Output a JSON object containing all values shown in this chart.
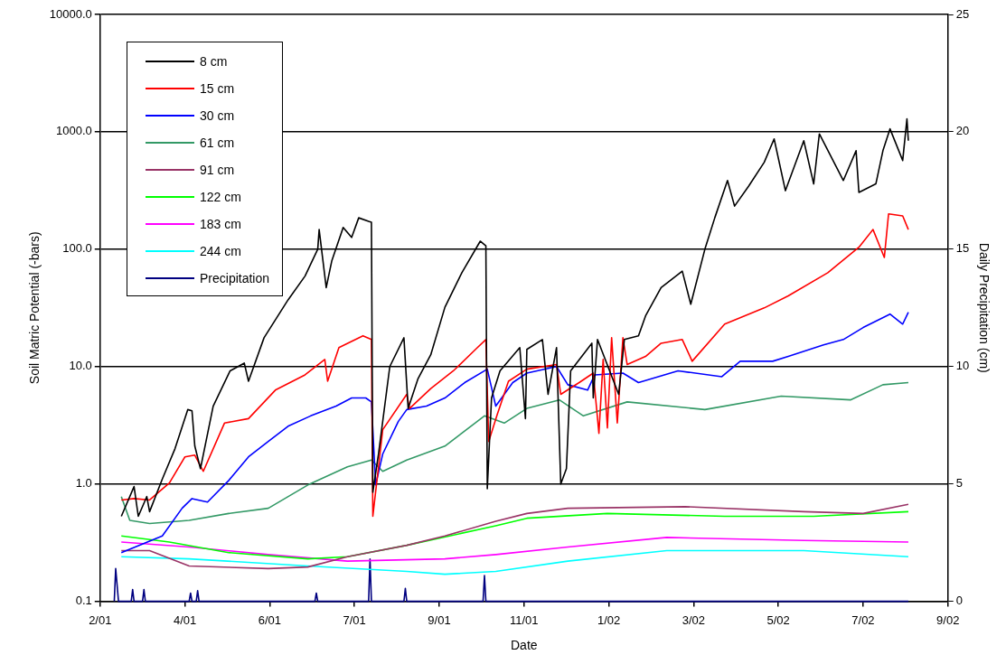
{
  "chart_data": {
    "type": "line",
    "xlabel": "Date",
    "ylabel": "Soil Matric Potential (-bars)",
    "y2label": "Daily Precipitation (cm)",
    "log": "y",
    "grid": "y",
    "legend": "top left",
    "marker": "none",
    "line_style": "solid",
    "xlim": [
      "2001-02-01",
      "2002-09-24"
    ],
    "xticks": [
      {
        "value": "2001-02-01",
        "label": "2/01"
      },
      {
        "value": "2001-04-02",
        "label": "4/01"
      },
      {
        "value": "2001-06-01",
        "label": "6/01"
      },
      {
        "value": "2001-07-31",
        "label": "7/01"
      },
      {
        "value": "2001-09-29",
        "label": "9/01"
      },
      {
        "value": "2001-11-28",
        "label": "11/01"
      },
      {
        "value": "2002-01-27",
        "label": "1/02"
      },
      {
        "value": "2002-03-28",
        "label": "3/02"
      },
      {
        "value": "2002-05-27",
        "label": "5/02"
      },
      {
        "value": "2002-07-26",
        "label": "7/02"
      },
      {
        "value": "2002-09-24",
        "label": "9/02"
      }
    ],
    "ylim": [
      0.1,
      10000
    ],
    "yticks": [
      {
        "value": 0.1,
        "label": "0.1"
      },
      {
        "value": 1,
        "label": "1.0"
      },
      {
        "value": 10,
        "label": "10.0"
      },
      {
        "value": 100,
        "label": "100.0"
      },
      {
        "value": 1000,
        "label": "1000.0"
      },
      {
        "value": 10000,
        "label": "10000.0"
      }
    ],
    "y2lim": [
      0,
      25
    ],
    "y2ticks": [
      0,
      5,
      10,
      15,
      20,
      25
    ],
    "series": [
      {
        "name": "8 cm",
        "color": "#000000",
        "x": [
          "2001-02-16",
          "2001-02-25",
          "2001-02-28",
          "2001-03-06",
          "2001-03-08",
          "2001-03-17",
          "2001-03-26",
          "2001-04-04",
          "2001-04-07",
          "2001-04-09",
          "2001-04-13",
          "2001-04-22",
          "2001-05-04",
          "2001-05-14",
          "2001-05-17",
          "2001-05-28",
          "2001-06-14",
          "2001-06-26",
          "2001-07-05",
          "2001-07-06",
          "2001-07-11",
          "2001-07-15",
          "2001-07-23",
          "2001-07-29",
          "2001-08-03",
          "2001-08-10",
          "2001-08-12",
          "2001-08-13",
          "2001-08-17",
          "2001-08-25",
          "2001-09-04",
          "2001-09-07",
          "2001-09-14",
          "2001-09-23",
          "2001-10-03",
          "2001-10-15",
          "2001-10-28",
          "2001-11-01",
          "2001-11-02",
          "2001-11-05",
          "2001-11-11",
          "2001-11-25",
          "2001-11-29",
          "2001-11-30",
          "2001-12-11",
          "2001-12-15",
          "2001-12-21",
          "2001-12-24",
          "2001-12-28",
          "2001-12-31",
          "2002-01-15",
          "2002-01-16",
          "2002-01-19",
          "2002-02-03",
          "2002-02-07",
          "2002-02-17",
          "2002-02-22",
          "2002-03-05",
          "2002-03-20",
          "2002-03-26",
          "2002-04-05",
          "2002-04-12",
          "2002-04-21",
          "2002-04-26",
          "2002-05-06",
          "2002-05-17",
          "2002-05-24",
          "2002-06-01",
          "2002-06-14",
          "2002-06-21",
          "2002-06-25",
          "2002-07-12",
          "2002-07-21",
          "2002-07-23",
          "2002-08-04",
          "2002-08-09",
          "2002-08-14",
          "2002-08-23",
          "2002-08-26",
          "2002-08-27"
        ],
        "values": [
          0.53,
          0.95,
          0.53,
          0.78,
          0.58,
          1.1,
          2.0,
          4.3,
          4.2,
          2.1,
          1.35,
          4.6,
          9.2,
          10.7,
          7.5,
          17.6,
          37,
          59,
          100,
          147,
          47,
          80,
          153,
          126,
          185,
          173,
          170,
          0.85,
          1.8,
          10,
          17.6,
          4.4,
          7.9,
          12.6,
          32,
          63,
          117,
          107,
          0.91,
          5.4,
          9.2,
          14.5,
          3.6,
          14,
          17,
          5.8,
          14.5,
          1.0,
          1.35,
          9.2,
          15.8,
          5.4,
          17,
          5.8,
          17,
          18.3,
          27,
          47,
          65,
          34,
          100,
          185,
          385,
          233,
          345,
          550,
          870,
          315,
          840,
          360,
          960,
          385,
          690,
          305,
          360,
          690,
          1060,
          570,
          1290,
          840
        ]
      },
      {
        "name": "15 cm",
        "color": "#ff0000",
        "x": [
          "2001-02-16",
          "2001-02-25",
          "2001-03-08",
          "2001-03-22",
          "2001-04-02",
          "2001-04-09",
          "2001-04-15",
          "2001-04-30",
          "2001-05-17",
          "2001-06-05",
          "2001-06-26",
          "2001-07-10",
          "2001-07-12",
          "2001-07-20",
          "2001-08-06",
          "2001-08-12",
          "2001-08-13",
          "2001-08-20",
          "2001-09-06",
          "2001-09-08",
          "2001-09-23",
          "2001-10-09",
          "2001-10-26",
          "2001-11-01",
          "2001-11-03",
          "2001-11-09",
          "2001-11-17",
          "2001-11-30",
          "2001-12-21",
          "2001-12-24",
          "2002-01-06",
          "2002-01-16",
          "2002-01-20",
          "2002-01-23",
          "2002-01-26",
          "2002-01-29",
          "2002-02-02",
          "2002-02-06",
          "2002-02-09",
          "2002-02-22",
          "2002-03-05",
          "2002-03-20",
          "2002-03-27",
          "2002-04-19",
          "2002-05-17",
          "2002-06-03",
          "2002-07-01",
          "2002-07-23",
          "2002-08-02",
          "2002-08-10",
          "2002-08-13",
          "2002-08-23",
          "2002-08-27"
        ],
        "values": [
          0.73,
          0.75,
          0.73,
          1.02,
          1.7,
          1.76,
          1.28,
          3.3,
          3.6,
          6.3,
          8.5,
          11.5,
          7.5,
          14.5,
          18.3,
          17,
          0.53,
          2.9,
          5.8,
          4.4,
          6.5,
          9.2,
          14.5,
          17,
          2.3,
          3.9,
          7.5,
          9.5,
          10.4,
          5.8,
          7.3,
          8.8,
          2.7,
          11.5,
          3.0,
          17.6,
          3.3,
          17.6,
          10.4,
          12.2,
          15.8,
          17,
          11.1,
          23,
          31.6,
          40,
          63,
          104,
          147,
          85,
          200,
          192,
          147
        ]
      },
      {
        "name": "30 cm",
        "color": "#0000ff",
        "x": [
          "2001-02-16",
          "2001-03-17",
          "2001-03-31",
          "2001-04-07",
          "2001-04-18",
          "2001-05-03",
          "2001-05-17",
          "2001-05-31",
          "2001-06-14",
          "2001-06-30",
          "2001-07-18",
          "2001-07-29",
          "2001-08-08",
          "2001-08-12",
          "2001-08-15",
          "2001-08-20",
          "2001-08-31",
          "2001-09-06",
          "2001-09-20",
          "2001-10-03",
          "2001-10-17",
          "2001-11-02",
          "2001-11-08",
          "2001-11-20",
          "2001-11-30",
          "2001-12-21",
          "2001-12-29",
          "2002-01-12",
          "2002-01-17",
          "2002-02-06",
          "2002-02-17",
          "2002-03-17",
          "2002-04-17",
          "2002-04-30",
          "2002-05-23",
          "2002-06-03",
          "2002-06-28",
          "2002-07-12",
          "2002-07-26",
          "2002-08-14",
          "2002-08-23",
          "2002-08-27"
        ],
        "values": [
          0.26,
          0.36,
          0.62,
          0.75,
          0.7,
          1.07,
          1.7,
          2.3,
          3.1,
          3.8,
          4.6,
          5.4,
          5.4,
          5.0,
          0.98,
          1.8,
          3.4,
          4.3,
          4.6,
          5.4,
          7.3,
          9.5,
          4.6,
          7.3,
          8.8,
          10,
          7.0,
          6.3,
          8.5,
          8.8,
          7.3,
          9.2,
          8.2,
          11.1,
          11.1,
          12.2,
          15.3,
          17,
          21.5,
          28,
          23,
          29
        ]
      },
      {
        "name": "61 cm",
        "color": "#339966",
        "x": [
          "2001-02-16",
          "2001-02-22",
          "2001-03-08",
          "2001-04-05",
          "2001-05-03",
          "2001-05-31",
          "2001-06-28",
          "2001-07-26",
          "2001-08-12",
          "2001-08-20",
          "2001-09-06",
          "2001-10-03",
          "2001-10-31",
          "2001-11-14",
          "2001-11-30",
          "2001-12-23",
          "2002-01-09",
          "2002-02-09",
          "2002-04-05",
          "2002-05-29",
          "2002-07-17",
          "2002-08-09",
          "2002-08-27"
        ],
        "values": [
          0.78,
          0.49,
          0.46,
          0.49,
          0.56,
          0.62,
          0.98,
          1.4,
          1.6,
          1.28,
          1.6,
          2.1,
          3.8,
          3.3,
          4.4,
          5.2,
          3.8,
          5.0,
          4.3,
          5.6,
          5.2,
          7.0,
          7.3
        ]
      },
      {
        "name": "91 cm",
        "color": "#993366",
        "x": [
          "2001-02-16",
          "2001-03-08",
          "2001-04-05",
          "2001-05-31",
          "2001-06-28",
          "2001-07-26",
          "2001-09-06",
          "2001-10-03",
          "2001-11-08",
          "2001-11-30",
          "2001-12-29",
          "2002-03-22",
          "2002-06-14",
          "2002-07-26",
          "2002-08-27"
        ],
        "values": [
          0.27,
          0.27,
          0.2,
          0.19,
          0.196,
          0.24,
          0.3,
          0.36,
          0.48,
          0.56,
          0.62,
          0.64,
          0.58,
          0.56,
          0.67
        ]
      },
      {
        "name": "122 cm",
        "color": "#00ff00",
        "x": [
          "2001-02-16",
          "2001-03-22",
          "2001-05-03",
          "2001-06-28",
          "2001-07-26",
          "2001-09-06",
          "2001-11-08",
          "2001-11-30",
          "2002-01-26",
          "2002-04-19",
          "2002-06-21",
          "2002-08-27"
        ],
        "values": [
          0.36,
          0.32,
          0.26,
          0.23,
          0.24,
          0.3,
          0.44,
          0.51,
          0.56,
          0.53,
          0.53,
          0.58
        ]
      },
      {
        "name": "183 cm",
        "color": "#ff00ff",
        "x": [
          "2001-02-16",
          "2001-04-05",
          "2001-05-31",
          "2001-07-26",
          "2001-10-03",
          "2001-11-08",
          "2001-12-29",
          "2002-03-09",
          "2002-06-14",
          "2002-08-27"
        ],
        "values": [
          0.32,
          0.29,
          0.25,
          0.22,
          0.23,
          0.25,
          0.29,
          0.35,
          0.33,
          0.32
        ]
      },
      {
        "name": "244 cm",
        "color": "#00ffff",
        "x": [
          "2001-02-16",
          "2001-04-05",
          "2001-06-28",
          "2001-09-06",
          "2001-10-03",
          "2001-11-08",
          "2001-12-29",
          "2002-03-09",
          "2002-06-14",
          "2002-08-27"
        ],
        "values": [
          0.24,
          0.23,
          0.2,
          0.18,
          0.17,
          0.18,
          0.22,
          0.27,
          0.27,
          0.24
        ]
      },
      {
        "name": "Precipitation",
        "color": "#000080",
        "axis": "y2",
        "x": [
          "2001-02-11",
          "2001-02-12",
          "2001-02-14",
          "2001-02-23",
          "2001-02-24",
          "2001-02-25",
          "2001-03-03",
          "2001-03-04",
          "2001-03-05",
          "2001-04-05",
          "2001-04-06",
          "2001-04-07",
          "2001-04-10",
          "2001-04-11",
          "2001-04-12",
          "2001-07-03",
          "2001-07-04",
          "2001-07-05",
          "2001-08-10",
          "2001-08-11",
          "2001-08-12",
          "2001-09-04",
          "2001-09-05",
          "2001-09-06",
          "2001-10-30",
          "2001-10-31",
          "2001-11-01",
          "2002-08-27"
        ],
        "values": [
          0,
          1.4,
          0,
          0,
          0.5,
          0,
          0,
          0.5,
          0,
          0,
          0.35,
          0,
          0,
          0.45,
          0,
          0,
          0.35,
          0,
          0,
          1.8,
          0,
          0,
          0.55,
          0,
          0,
          1.1,
          0,
          0
        ]
      }
    ]
  }
}
